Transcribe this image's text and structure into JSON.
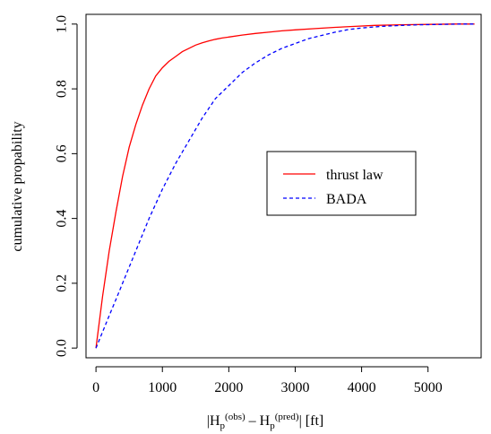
{
  "chart_data": {
    "type": "line",
    "title": "",
    "xlabel": {
      "pre": "|H",
      "sub1": "p",
      "sup1": "(obs)",
      "mid": " – H",
      "sub2": "p",
      "sup2": "(pred)",
      "post": "| [ft]"
    },
    "ylabel": "cumulative propability",
    "xlim": [
      -150,
      5800
    ],
    "ylim": [
      -0.03,
      1.03
    ],
    "xticks": [
      0,
      1000,
      2000,
      3000,
      4000,
      5000
    ],
    "xtick_labels": [
      "0",
      "1000",
      "2000",
      "3000",
      "4000",
      "5000"
    ],
    "yticks": [
      0.0,
      0.2,
      0.4,
      0.6,
      0.8,
      1.0
    ],
    "ytick_labels": [
      "0.0",
      "0.2",
      "0.4",
      "0.6",
      "0.8",
      "1.0"
    ],
    "grid": false,
    "legend_position": "center-right",
    "series": [
      {
        "name": "thrust law",
        "color": "#ff0000",
        "dash": "solid",
        "x": [
          0,
          50,
          100,
          150,
          200,
          300,
          400,
          500,
          600,
          700,
          800,
          900,
          1000,
          1100,
          1200,
          1300,
          1400,
          1500,
          1600,
          1700,
          1800,
          1900,
          2000,
          2200,
          2400,
          2600,
          2800,
          3000,
          3300,
          3600,
          3900,
          4200,
          4600,
          5000,
          5400,
          5700
        ],
        "y": [
          0.0,
          0.08,
          0.16,
          0.23,
          0.3,
          0.42,
          0.53,
          0.62,
          0.69,
          0.75,
          0.8,
          0.84,
          0.865,
          0.885,
          0.9,
          0.915,
          0.925,
          0.935,
          0.942,
          0.948,
          0.953,
          0.957,
          0.96,
          0.966,
          0.971,
          0.975,
          0.979,
          0.982,
          0.986,
          0.99,
          0.993,
          0.996,
          0.998,
          0.999,
          1.0,
          1.0
        ]
      },
      {
        "name": "BADA",
        "color": "#0000ff",
        "dash": "dashed",
        "x": [
          0,
          100,
          200,
          300,
          400,
          500,
          600,
          700,
          800,
          900,
          1000,
          1200,
          1400,
          1600,
          1800,
          2000,
          2200,
          2400,
          2600,
          2800,
          3000,
          3200,
          3400,
          3600,
          3800,
          4000,
          4300,
          4600,
          4900,
          5200,
          5500,
          5700
        ],
        "y": [
          0.0,
          0.05,
          0.1,
          0.15,
          0.2,
          0.25,
          0.3,
          0.35,
          0.4,
          0.445,
          0.49,
          0.57,
          0.64,
          0.71,
          0.77,
          0.81,
          0.85,
          0.88,
          0.905,
          0.925,
          0.94,
          0.955,
          0.965,
          0.975,
          0.983,
          0.988,
          0.993,
          0.996,
          0.998,
          0.999,
          1.0,
          1.0
        ]
      }
    ]
  }
}
